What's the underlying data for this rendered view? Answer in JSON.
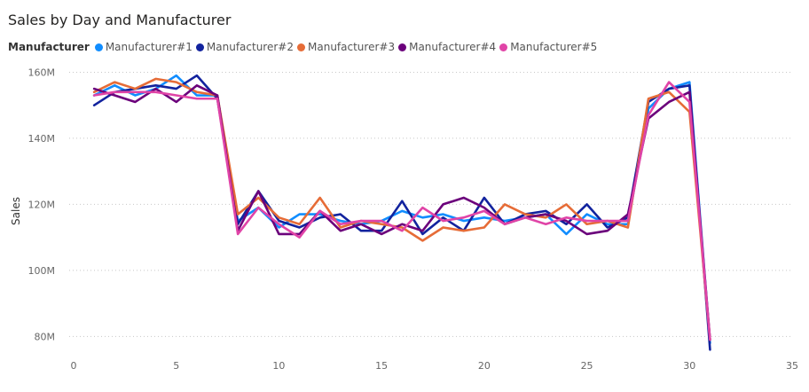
{
  "chart_data": {
    "type": "line",
    "title": "Sales by Day and Manufacturer",
    "legend_title": "Manufacturer",
    "legend_position": "top-left",
    "xlabel": "",
    "ylabel": "Sales",
    "xlim": [
      0,
      35
    ],
    "ylim": [
      75,
      162
    ],
    "x_ticks": [
      0,
      5,
      10,
      15,
      20,
      25,
      30,
      35
    ],
    "y_ticks": [
      {
        "value": 80,
        "label": "80M"
      },
      {
        "value": 100,
        "label": "100M"
      },
      {
        "value": 120,
        "label": "120M"
      },
      {
        "value": 140,
        "label": "140M"
      },
      {
        "value": 160,
        "label": "160M"
      }
    ],
    "grid": "horizontal-dotted",
    "x": [
      1,
      2,
      3,
      4,
      5,
      6,
      7,
      8,
      9,
      10,
      11,
      12,
      13,
      14,
      15,
      16,
      17,
      18,
      19,
      20,
      21,
      22,
      23,
      24,
      25,
      26,
      27,
      28,
      29,
      30,
      31
    ],
    "series": [
      {
        "name": "Manufacturer#1",
        "color": "#118DFF",
        "values": [
          153,
          156,
          153,
          155,
          159,
          153,
          153,
          115,
          119,
          113,
          117,
          117,
          115,
          114,
          115,
          118,
          116,
          117,
          115,
          116,
          115,
          116,
          117,
          111,
          117,
          114,
          114,
          149,
          155,
          157,
          78
        ]
      },
      {
        "name": "Manufacturer#2",
        "color": "#12239E",
        "values": [
          150,
          154,
          155,
          156,
          155,
          159,
          152,
          114,
          124,
          115,
          113,
          116,
          117,
          112,
          112,
          121,
          111,
          116,
          112,
          122,
          114,
          117,
          118,
          114,
          120,
          113,
          116,
          151,
          155,
          156,
          76
        ]
      },
      {
        "name": "Manufacturer#3",
        "color": "#E66C37",
        "values": [
          154,
          157,
          155,
          158,
          157,
          154,
          153,
          117,
          122,
          116,
          114,
          122,
          113,
          115,
          114,
          113,
          109,
          113,
          112,
          113,
          120,
          117,
          116,
          120,
          114,
          115,
          113,
          152,
          154,
          148,
          79
        ]
      },
      {
        "name": "Manufacturer#4",
        "color": "#6B007B",
        "values": [
          155,
          153,
          151,
          155,
          151,
          156,
          153,
          112,
          124,
          111,
          111,
          118,
          112,
          114,
          111,
          114,
          112,
          120,
          122,
          119,
          114,
          116,
          117,
          115,
          111,
          112,
          117,
          146,
          151,
          154,
          79
        ]
      },
      {
        "name": "Manufacturer#5",
        "color": "#E044A7",
        "values": [
          153,
          154,
          154,
          154,
          153,
          152,
          152,
          111,
          119,
          114,
          110,
          118,
          114,
          115,
          115,
          112,
          119,
          115,
          116,
          118,
          114,
          116,
          114,
          116,
          115,
          115,
          115,
          147,
          157,
          151,
          79
        ]
      }
    ]
  }
}
